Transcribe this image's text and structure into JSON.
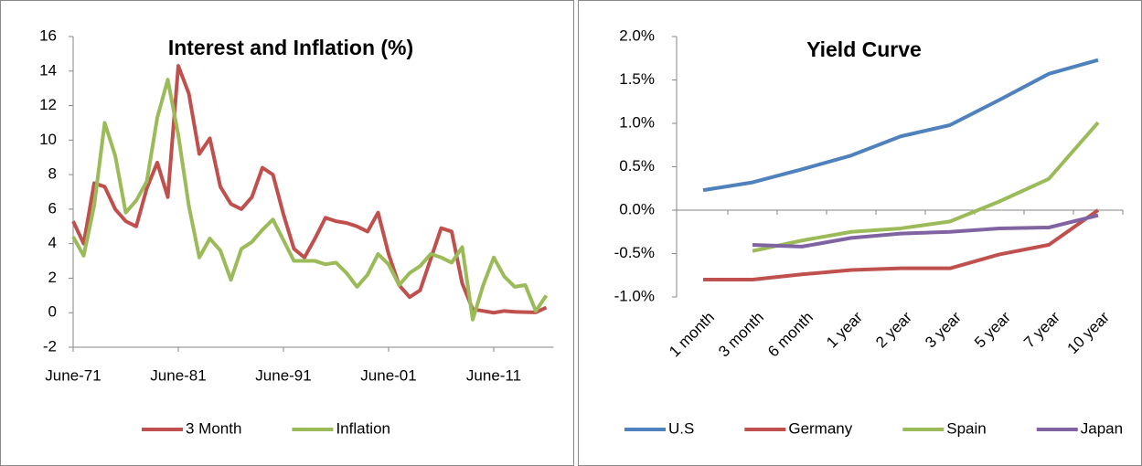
{
  "chart_data": [
    {
      "type": "line",
      "title": "Interest and Inflation (%)",
      "categories": [
        "June-71",
        null,
        null,
        null,
        null,
        null,
        null,
        null,
        null,
        null,
        "June-81",
        null,
        null,
        null,
        null,
        null,
        null,
        null,
        null,
        null,
        "June-91",
        null,
        null,
        null,
        null,
        null,
        null,
        null,
        null,
        null,
        "June-01",
        null,
        null,
        null,
        null,
        null,
        null,
        null,
        null,
        null,
        "June-11",
        null,
        null,
        null,
        null,
        null
      ],
      "series": [
        {
          "name": "3 Month",
          "color": "#c0504d",
          "values": [
            5.3,
            4.0,
            7.5,
            7.3,
            6.0,
            5.3,
            5.0,
            7.2,
            8.7,
            6.7,
            14.3,
            12.7,
            9.2,
            10.1,
            7.3,
            6.3,
            6.0,
            6.7,
            8.4,
            8.0,
            5.7,
            3.7,
            3.2,
            4.3,
            5.5,
            5.3,
            5.2,
            5.0,
            4.7,
            5.8,
            3.4,
            1.6,
            0.9,
            1.3,
            3.1,
            4.9,
            4.7,
            1.7,
            0.2,
            0.1,
            0.0,
            0.1,
            0.05,
            0.03,
            0.02,
            0.3
          ]
        },
        {
          "name": "Inflation",
          "color": "#9bbb59",
          "values": [
            4.4,
            3.3,
            6.2,
            11.0,
            9.1,
            5.8,
            6.5,
            7.6,
            11.3,
            13.5,
            10.3,
            6.2,
            3.2,
            4.3,
            3.6,
            1.9,
            3.7,
            4.1,
            4.8,
            5.4,
            4.2,
            3.0,
            3.0,
            3.0,
            2.8,
            2.9,
            2.3,
            1.5,
            2.2,
            3.4,
            2.8,
            1.6,
            2.3,
            2.7,
            3.4,
            3.2,
            2.9,
            3.8,
            -0.4,
            1.6,
            3.2,
            2.1,
            1.5,
            1.6,
            0.1,
            1.0
          ]
        }
      ],
      "ylim": [
        -2,
        16
      ],
      "yticks": [
        -2,
        0,
        2,
        4,
        6,
        8,
        10,
        12,
        14,
        16
      ],
      "grid": false,
      "legend": "bottom"
    },
    {
      "type": "line",
      "title": "Yield Curve",
      "categories": [
        "1 month",
        "3 month",
        "6 month",
        "1 year",
        "2 year",
        "3 year",
        "5 year",
        "7 year",
        "10 year"
      ],
      "series": [
        {
          "name": "U.S",
          "color": "#4f81bd",
          "values": [
            0.23,
            0.32,
            0.47,
            0.63,
            0.85,
            0.98,
            1.27,
            1.57,
            1.73
          ]
        },
        {
          "name": "Germany",
          "color": "#c0504d",
          "values": [
            -0.8,
            -0.8,
            -0.74,
            -0.69,
            -0.67,
            -0.67,
            -0.51,
            -0.4,
            0.0
          ]
        },
        {
          "name": "Spain",
          "color": "#9bbb59",
          "values": [
            null,
            -0.47,
            -0.35,
            -0.25,
            -0.21,
            -0.13,
            0.1,
            0.36,
            1.01
          ]
        },
        {
          "name": "Japan",
          "color": "#8064a2",
          "values": [
            null,
            -0.4,
            -0.42,
            -0.32,
            -0.27,
            -0.25,
            -0.21,
            -0.2,
            -0.06
          ]
        }
      ],
      "ylim": [
        -1,
        2
      ],
      "yticks": [
        {
          "value": -1,
          "label": "-1.0%"
        },
        {
          "value": -0.5,
          "label": "-0.5%"
        },
        {
          "value": 0,
          "label": "0.0%"
        },
        {
          "value": 0.5,
          "label": "0.5%"
        },
        {
          "value": 1,
          "label": "1.0%"
        },
        {
          "value": 1.5,
          "label": "1.5%"
        },
        {
          "value": 2,
          "label": "2.0%"
        }
      ],
      "grid": false,
      "legend": "bottom"
    }
  ]
}
